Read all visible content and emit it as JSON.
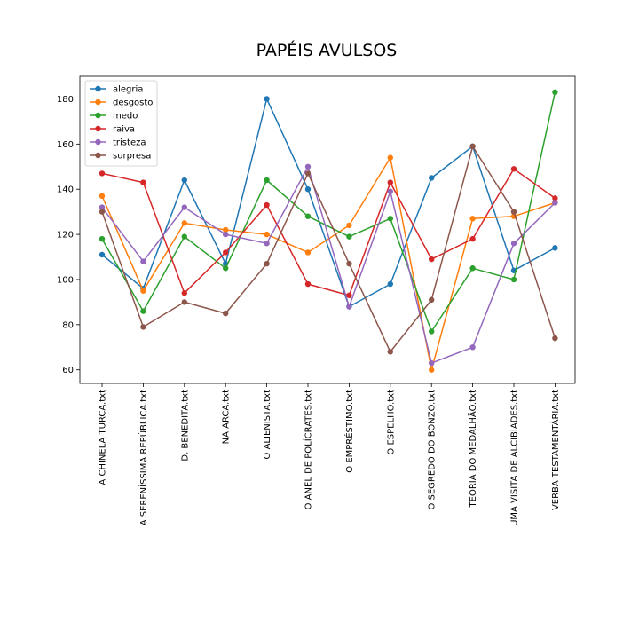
{
  "chart_data": {
    "type": "line",
    "title": "PAPÉIS AVULSOS",
    "xlabel": "",
    "ylabel": "",
    "categories": [
      "A CHINELA TURCA.txt",
      "A SERENÍSSIMA REPÚBLICA.txt",
      "D. BENEDITA.txt",
      "NA ARCA.txt",
      "O ALIENISTA.txt",
      "O ANEL DE POLÍCRATES.txt",
      "O EMPRÉSTIMO.txt",
      "O ESPELHO.txt",
      "O SEGREDO DO BONZO.txt",
      "TEORIA DO MEDALHÃO.txt",
      "UMA VISITA DE ALCIBÍADES.txt",
      "VERBA TESTAMENTÁRIA.txt"
    ],
    "ylim": [
      54,
      190
    ],
    "yticks": [
      60,
      80,
      100,
      120,
      140,
      160,
      180
    ],
    "legend_position": "top-left",
    "grid": false,
    "series": [
      {
        "name": "alegria",
        "color": "#1f77b4",
        "values": [
          111,
          96,
          144,
          107,
          180,
          140,
          88,
          98,
          145,
          159,
          104,
          114
        ]
      },
      {
        "name": "desgosto",
        "color": "#ff7f0e",
        "values": [
          137,
          95,
          125,
          122,
          120,
          112,
          124,
          154,
          60,
          127,
          128,
          134
        ]
      },
      {
        "name": "medo",
        "color": "#2ca02c",
        "values": [
          118,
          86,
          119,
          105,
          144,
          128,
          119,
          127,
          77,
          105,
          100,
          183
        ]
      },
      {
        "name": "raiva",
        "color": "#d62728",
        "values": [
          147,
          143,
          94,
          112,
          133,
          98,
          93,
          143,
          109,
          118,
          149,
          136
        ]
      },
      {
        "name": "tristeza",
        "color": "#9467bd",
        "values": [
          132,
          108,
          132,
          120,
          116,
          150,
          88,
          139,
          63,
          70,
          116,
          134
        ]
      },
      {
        "name": "surpresa",
        "color": "#8c564b",
        "values": [
          130,
          79,
          90,
          85,
          107,
          147,
          107,
          68,
          91,
          159,
          130,
          74
        ]
      }
    ]
  }
}
